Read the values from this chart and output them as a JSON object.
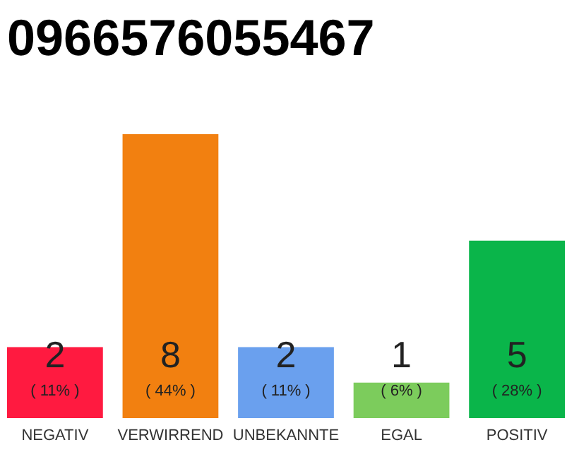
{
  "chart_data": {
    "type": "bar",
    "title": "0966576055467",
    "categories": [
      "NEGATIV",
      "VERWIRREND",
      "UNBEKANNTE",
      "EGAL",
      "POSITIV"
    ],
    "values": [
      2,
      8,
      2,
      1,
      5
    ],
    "colors": [
      "#ff1a40",
      "#f28010",
      "#6aa0ee",
      "#7ccc5c",
      "#0ab54a"
    ],
    "data_labels": true,
    "annotations": [
      "( 11% )",
      "( 44% )",
      "( 11% )",
      "( 6% )",
      "( 28% )"
    ],
    "grid": false,
    "legend": false
  }
}
